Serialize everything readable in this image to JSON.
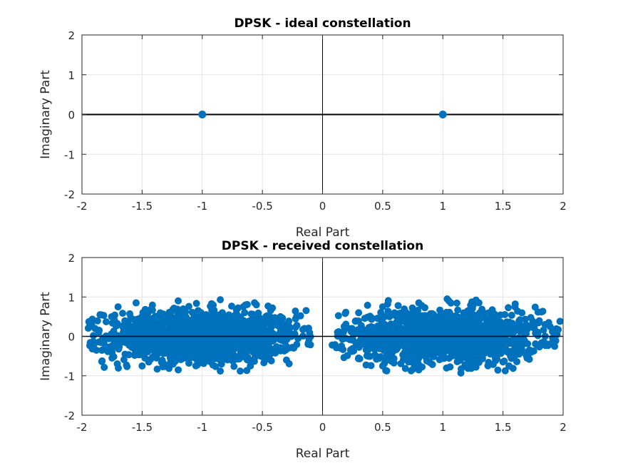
{
  "chart_data": [
    {
      "type": "scatter",
      "title": "DPSK - ideal constellation",
      "xlabel": "Real Part",
      "ylabel": "Imaginary Part",
      "xlim": [
        -2,
        2
      ],
      "ylim": [
        -2,
        2
      ],
      "xticks": [
        -2,
        -1.5,
        -1,
        -0.5,
        0,
        0.5,
        1,
        1.5,
        2
      ],
      "yticks": [
        -2,
        -1,
        0,
        1,
        2
      ],
      "grid": true,
      "axis_lines_through_origin": true,
      "marker_color": "#0072BD",
      "points": [
        [
          -1,
          0
        ],
        [
          1,
          0
        ]
      ]
    },
    {
      "type": "scatter",
      "title": "DPSK - received constellation",
      "xlabel": "Real Part",
      "ylabel": "Imaginary Part",
      "xlim": [
        -2,
        2
      ],
      "ylim": [
        -2,
        2
      ],
      "xticks": [
        -2,
        -1.5,
        -1,
        -0.5,
        0,
        0.5,
        1,
        1.5,
        2
      ],
      "yticks": [
        -2,
        -1,
        0,
        1,
        2
      ],
      "grid": true,
      "axis_lines_through_origin": true,
      "marker_color": "#0072BD",
      "clusters": [
        {
          "center": [
            -1,
            0
          ],
          "x_spread": 0.4,
          "y_spread": 0.33,
          "x_range": [
            -1.95,
            -0.1
          ],
          "y_range": [
            -0.9,
            0.95
          ]
        },
        {
          "center": [
            1,
            0
          ],
          "x_spread": 0.4,
          "y_spread": 0.33,
          "x_range": [
            0.1,
            1.98
          ],
          "y_range": [
            -0.95,
            0.95
          ]
        }
      ],
      "points": [
        [
          -1.92,
          0.3
        ],
        [
          -1.85,
          0.55
        ],
        [
          -1.9,
          -0.2
        ],
        [
          -1.7,
          0.75
        ],
        [
          -1.55,
          0.85
        ],
        [
          -1.2,
          0.9
        ],
        [
          -0.85,
          0.93
        ],
        [
          -0.55,
          0.8
        ],
        [
          -0.35,
          0.5
        ],
        [
          -0.15,
          0.2
        ],
        [
          -0.12,
          -0.2
        ],
        [
          -0.3,
          -0.6
        ],
        [
          -0.6,
          -0.75
        ],
        [
          -0.85,
          -0.88
        ],
        [
          -1.2,
          -0.85
        ],
        [
          -1.5,
          -0.75
        ],
        [
          -1.75,
          -0.55
        ],
        [
          -1.88,
          -0.35
        ],
        [
          0.08,
          -0.22
        ],
        [
          0.18,
          0.25
        ],
        [
          0.15,
          -0.3
        ],
        [
          0.3,
          0.6
        ],
        [
          0.5,
          0.75
        ],
        [
          0.8,
          0.85
        ],
        [
          1.05,
          0.9
        ],
        [
          1.3,
          0.85
        ],
        [
          1.6,
          0.75
        ],
        [
          1.82,
          0.62
        ],
        [
          1.95,
          0.05
        ],
        [
          1.88,
          -0.2
        ],
        [
          1.7,
          -0.55
        ],
        [
          1.55,
          -0.75
        ],
        [
          1.15,
          -0.93
        ],
        [
          0.8,
          -0.85
        ],
        [
          0.5,
          -0.75
        ],
        [
          0.3,
          -0.55
        ],
        [
          1.85,
          0.3
        ],
        [
          -1.0,
          0.0
        ],
        [
          1.0,
          0.0
        ]
      ]
    }
  ]
}
